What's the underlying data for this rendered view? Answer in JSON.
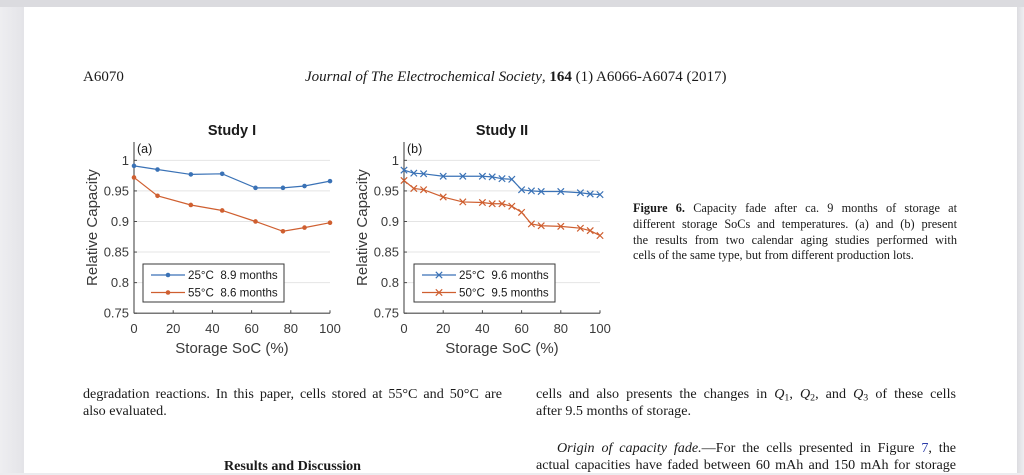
{
  "page": {
    "header": {
      "page_number": "A6070",
      "journal_name": "Journal of The Electrochemical Society",
      "separator": ", ",
      "volume": "164",
      "citation_rest": " (1) A6066-A6074 (2017)"
    },
    "caption": {
      "label": "Figure 6.",
      "line1_rest": " Capacity fade after ca. 9 months of storage at",
      "lines": [
        "different storage SoCs and temperatures. (a) and (b) present",
        "the results from two calendar aging studies performed with",
        "cells of the same type, but from different production lots."
      ]
    },
    "left_column": {
      "lines": [
        "degradation reactions. In this paper, cells stored at 55°C and 50°C are",
        "also evaluated."
      ],
      "section_heading": "Results and Discussion"
    },
    "right_column": {
      "q_line": {
        "pre": "cells and also presents the changes in ",
        "symbol": "Q",
        "sub1": "1",
        "sep1": ", ",
        "sub2": "2",
        "sep2": ", and ",
        "sub3": "3",
        "post": " of these cells"
      },
      "line2": "after 9.5 months of storage.",
      "paragraph2": {
        "runin_heading": "Origin of capacity fade.",
        "dash_text": "—For the cells presented in Figure ",
        "figure_link": "7",
        "line1_end": ", the",
        "line2": "actual capacities have faded between 60 mAh and 150 mAh for storage"
      }
    }
  },
  "chart_data": [
    {
      "type": "line",
      "panel_label": "(a)",
      "title": "Study I",
      "xlabel": "Storage SoC (%)",
      "ylabel": "Relative Capacity",
      "xlim": [
        0,
        100
      ],
      "ylim": [
        0.75,
        1.03
      ],
      "xticks": [
        0,
        20,
        40,
        60,
        80,
        100
      ],
      "xtick_labels": [
        "0",
        "20",
        "40",
        "60",
        "80",
        "100"
      ],
      "yticks": [
        0.75,
        0.8,
        0.85,
        0.9,
        0.95,
        1.0
      ],
      "ytick_labels": [
        "0.75",
        "0.8",
        "0.85",
        "0.9",
        "0.95",
        "1"
      ],
      "grid": "horizontal",
      "legend_position": "bottom-left",
      "series": [
        {
          "name": "25°C  8.9 months",
          "color": "#3a72b6",
          "marker": "dot",
          "x": [
            0,
            12,
            29,
            45,
            62,
            76,
            87,
            100
          ],
          "y": [
            0.991,
            0.985,
            0.977,
            0.978,
            0.955,
            0.955,
            0.958,
            0.966
          ]
        },
        {
          "name": "55°C  8.6 months",
          "color": "#cf5f30",
          "marker": "dot",
          "x": [
            0,
            12,
            29,
            45,
            62,
            76,
            87,
            100
          ],
          "y": [
            0.972,
            0.942,
            0.927,
            0.918,
            0.9,
            0.884,
            0.89,
            0.898
          ]
        }
      ]
    },
    {
      "type": "line",
      "panel_label": "(b)",
      "title": "Study II",
      "xlabel": "Storage SoC (%)",
      "ylabel": "Relative Capacity",
      "xlim": [
        0,
        100
      ],
      "ylim": [
        0.75,
        1.03
      ],
      "xticks": [
        0,
        20,
        40,
        60,
        80,
        100
      ],
      "xtick_labels": [
        "0",
        "20",
        "40",
        "60",
        "80",
        "100"
      ],
      "yticks": [
        0.75,
        0.8,
        0.85,
        0.9,
        0.95,
        1.0
      ],
      "ytick_labels": [
        "0.75",
        "0.8",
        "0.85",
        "0.9",
        "0.95",
        "1"
      ],
      "grid": "horizontal",
      "legend_position": "bottom-left",
      "series": [
        {
          "name": "25°C  9.6 months",
          "color": "#3a72b6",
          "marker": "x",
          "x": [
            0,
            5,
            10,
            20,
            30,
            40,
            45,
            50,
            55,
            60,
            65,
            70,
            80,
            90,
            95,
            100
          ],
          "y": [
            0.984,
            0.979,
            0.978,
            0.974,
            0.974,
            0.974,
            0.973,
            0.97,
            0.969,
            0.952,
            0.95,
            0.949,
            0.949,
            0.947,
            0.945,
            0.944
          ]
        },
        {
          "name": "50°C  9.5 months",
          "color": "#cf5f30",
          "marker": "x",
          "x": [
            0,
            5,
            10,
            20,
            30,
            40,
            45,
            50,
            55,
            60,
            65,
            70,
            80,
            90,
            95,
            100
          ],
          "y": [
            0.967,
            0.954,
            0.952,
            0.94,
            0.932,
            0.931,
            0.929,
            0.929,
            0.925,
            0.915,
            0.896,
            0.893,
            0.892,
            0.889,
            0.885,
            0.877
          ]
        }
      ]
    }
  ]
}
